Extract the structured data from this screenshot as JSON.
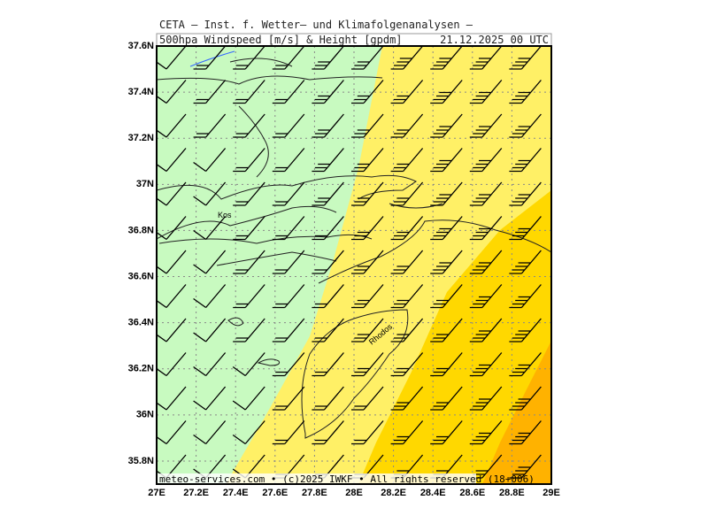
{
  "header": {
    "org": "CETA — Inst. f. Wetter— und Klimafolgenanalysen —",
    "field": "500hpa_Windspeed [m/s] & Height [gpdm]",
    "time": "21.12.2025 00 UTC"
  },
  "footer": "meteo-services.com • (c)2025 IWKF • All rights reserved (18+006)",
  "map": {
    "xlim": [
      27,
      29
    ],
    "ylim": [
      35.7,
      37.6
    ],
    "xticks": [
      {
        "value": 27,
        "label": "27E"
      },
      {
        "value": 27.2,
        "label": "27.2E"
      },
      {
        "value": 27.4,
        "label": "27.4E"
      },
      {
        "value": 27.6,
        "label": "27.6E"
      },
      {
        "value": 27.8,
        "label": "27.8E"
      },
      {
        "value": 28,
        "label": "28E"
      },
      {
        "value": 28.2,
        "label": "28.2E"
      },
      {
        "value": 28.4,
        "label": "28.4E"
      },
      {
        "value": 28.6,
        "label": "28.6E"
      },
      {
        "value": 28.8,
        "label": "28.8E"
      },
      {
        "value": 29,
        "label": "29E"
      }
    ],
    "yticks": [
      {
        "value": 35.8,
        "label": "35.8N"
      },
      {
        "value": 36,
        "label": "36N"
      },
      {
        "value": 36.2,
        "label": "36.2N"
      },
      {
        "value": 36.4,
        "label": "36.4N"
      },
      {
        "value": 36.6,
        "label": "36.6N"
      },
      {
        "value": 36.8,
        "label": "36.8N"
      },
      {
        "value": 37,
        "label": "37N"
      },
      {
        "value": 37.2,
        "label": "37.2N"
      },
      {
        "value": 37.4,
        "label": "37.4N"
      },
      {
        "value": 37.6,
        "label": "37.6N"
      }
    ],
    "places": [
      "Kos",
      "Rhodos"
    ]
  }
}
